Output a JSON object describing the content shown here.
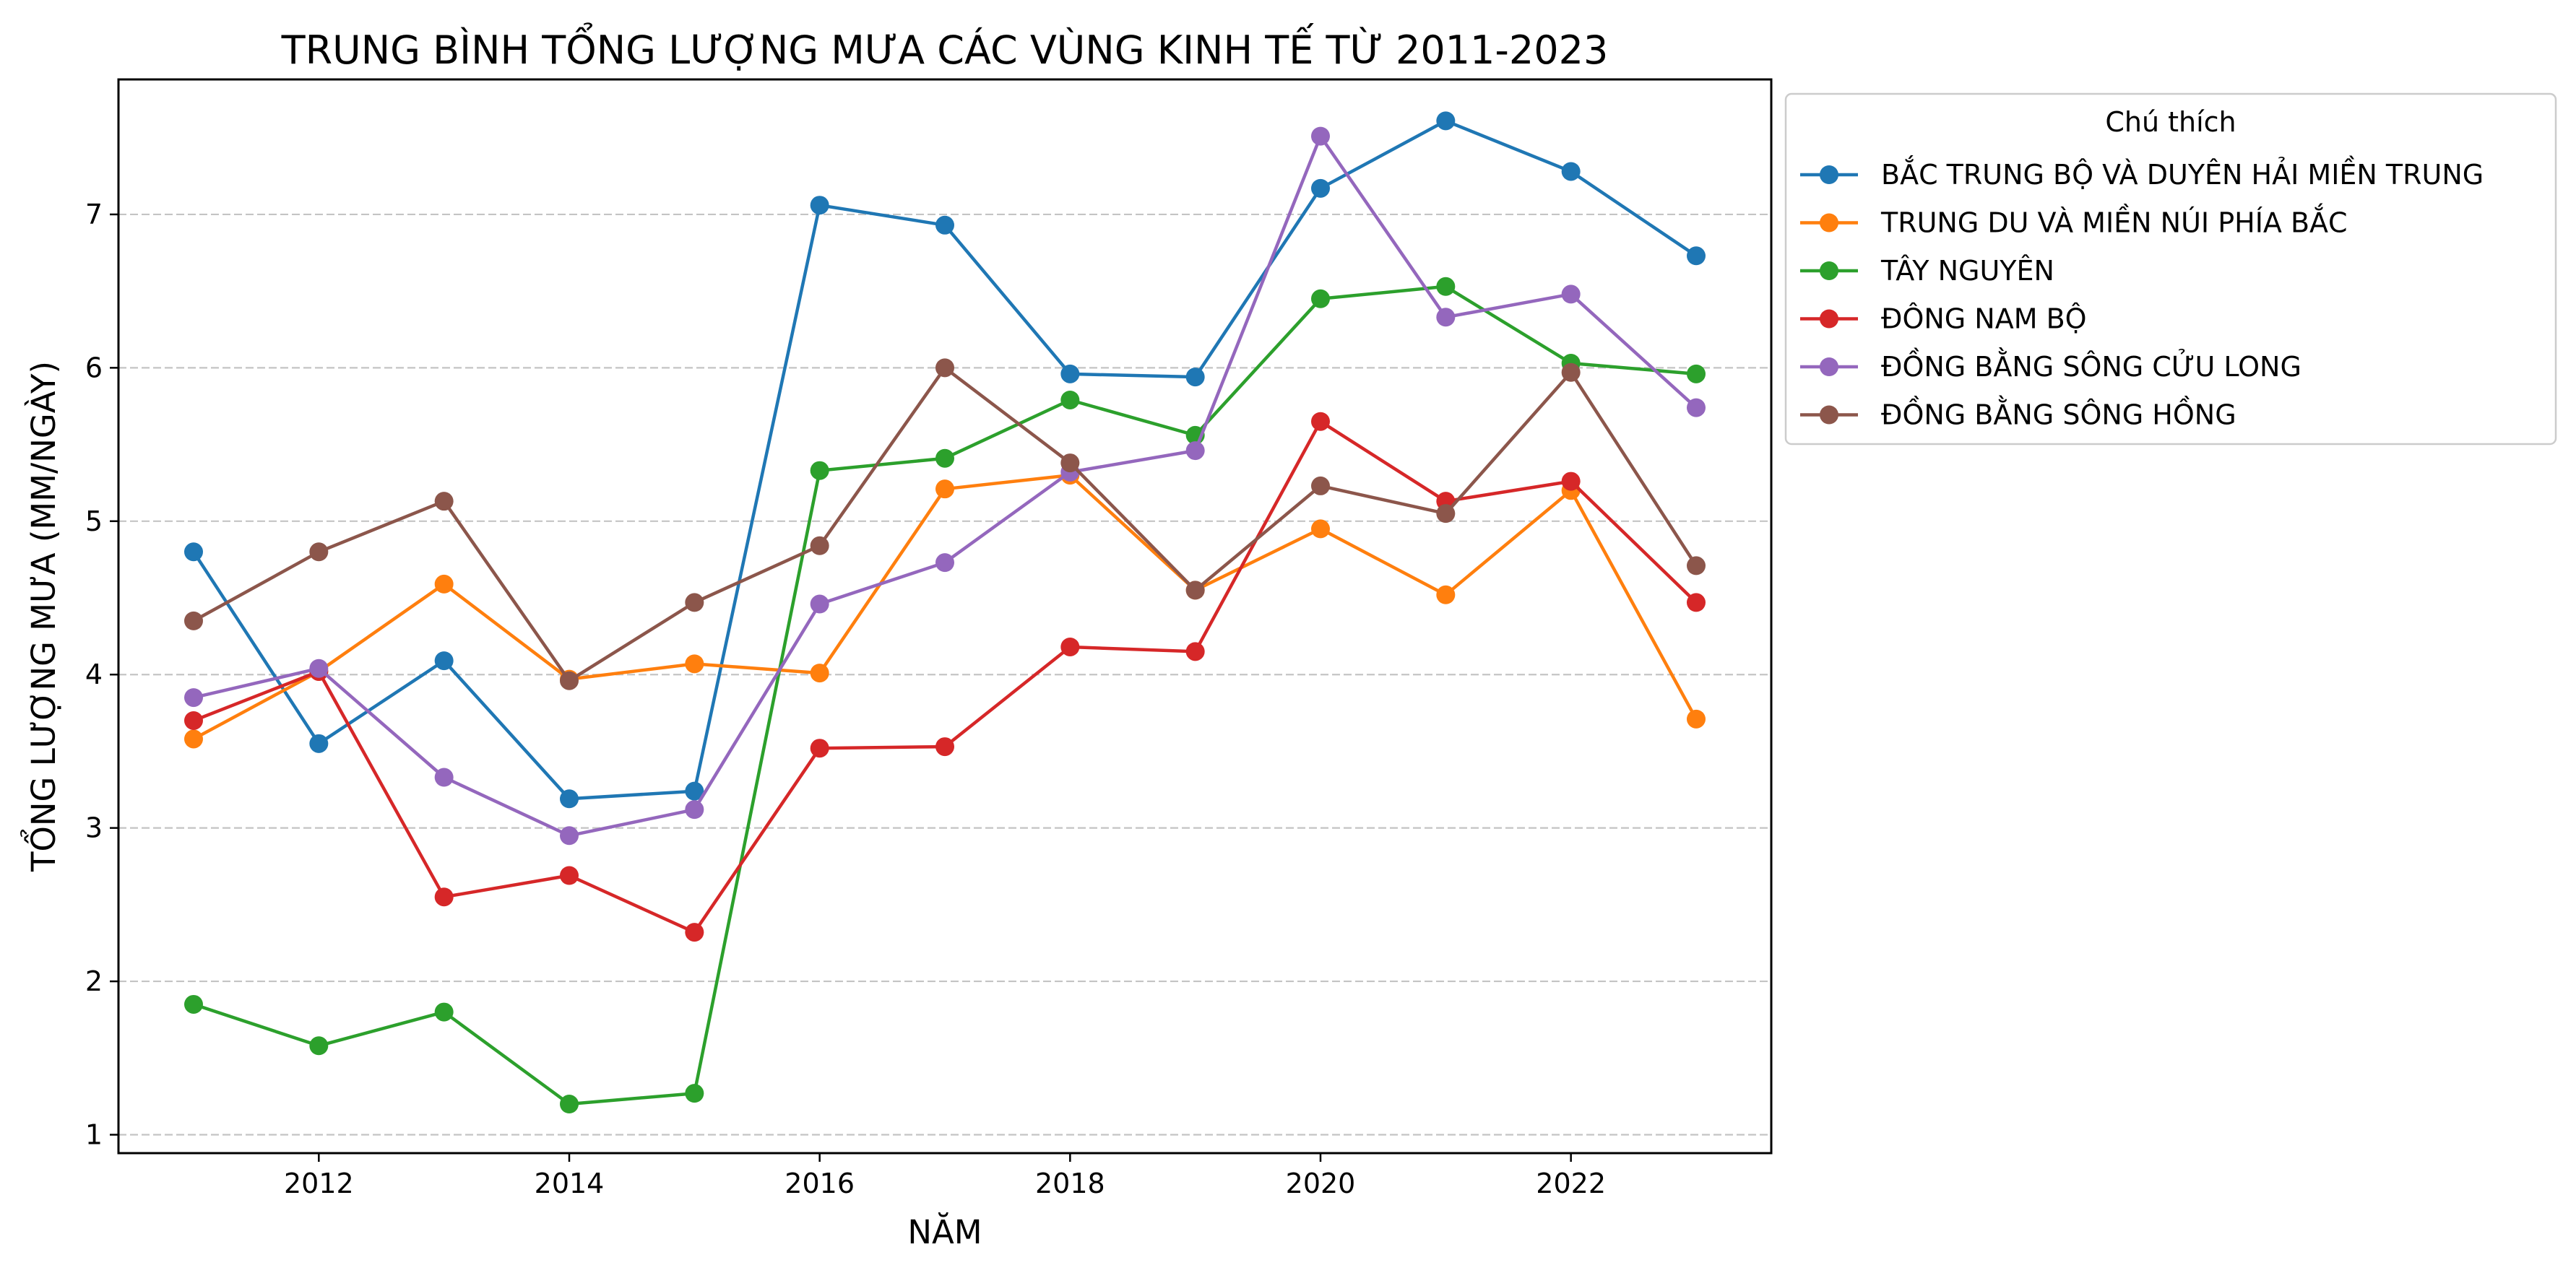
{
  "chart_data": {
    "type": "line",
    "title": "TRUNG BÌNH TỔNG LƯỢNG MƯA CÁC VÙNG KINH TẾ TỪ 2011-2023",
    "xlabel": "NĂM",
    "ylabel": "TỔNG LƯỢNG MƯA (MM/NGÀY)",
    "x": [
      2011,
      2012,
      2013,
      2014,
      2015,
      2016,
      2017,
      2018,
      2019,
      2020,
      2021,
      2022,
      2023
    ],
    "xlim": [
      2010.4,
      2023.6
    ],
    "ylim": [
      0.88,
      7.88
    ],
    "xticks": [
      2012,
      2014,
      2016,
      2018,
      2020,
      2022
    ],
    "yticks": [
      1,
      2,
      3,
      4,
      5,
      6,
      7
    ],
    "grid": "y-dashed",
    "legend": {
      "title": "Chú thích",
      "placement": "outside-right-top"
    },
    "series": [
      {
        "name": "BẮC TRUNG BỘ VÀ DUYÊN HẢI MIỀN TRUNG",
        "color": "#1f77b4",
        "values": [
          4.8,
          3.55,
          4.09,
          3.19,
          3.24,
          7.06,
          6.93,
          5.96,
          5.94,
          7.17,
          7.61,
          7.28,
          6.73
        ]
      },
      {
        "name": "TRUNG DU VÀ MIỀN NÚI PHÍA BẮC",
        "color": "#ff7f0e",
        "values": [
          3.58,
          4.02,
          4.59,
          3.97,
          4.07,
          4.01,
          5.21,
          5.3,
          4.55,
          4.95,
          4.52,
          5.2,
          3.71
        ]
      },
      {
        "name": "TÂY NGUYÊN",
        "color": "#2ca02c",
        "values": [
          1.85,
          1.58,
          1.8,
          1.2,
          1.27,
          5.33,
          5.41,
          5.79,
          5.56,
          6.45,
          6.53,
          6.03,
          5.96
        ]
      },
      {
        "name": "ĐÔNG NAM BỘ",
        "color": "#d62728",
        "values": [
          3.7,
          4.02,
          2.55,
          2.69,
          2.32,
          3.52,
          3.53,
          4.18,
          4.15,
          5.65,
          5.13,
          5.26,
          4.47
        ]
      },
      {
        "name": "ĐỒNG BẰNG SÔNG CỬU LONG",
        "color": "#9467bd",
        "values": [
          3.85,
          4.04,
          3.33,
          2.95,
          3.12,
          4.46,
          4.73,
          5.32,
          5.46,
          7.51,
          6.33,
          6.48,
          5.74
        ]
      },
      {
        "name": "ĐỒNG BẰNG SÔNG HỒNG",
        "color": "#8c564b",
        "values": [
          4.35,
          4.8,
          5.13,
          3.96,
          4.47,
          4.84,
          6.0,
          5.38,
          4.55,
          5.23,
          5.05,
          5.97,
          4.71
        ]
      }
    ]
  }
}
